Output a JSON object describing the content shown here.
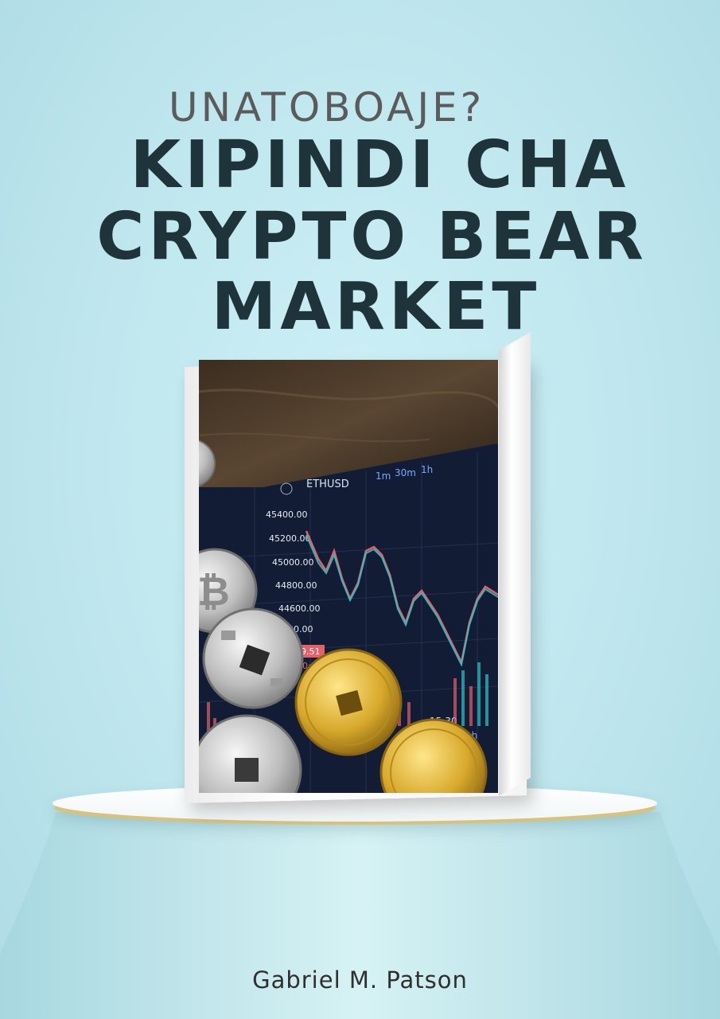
{
  "cover": {
    "subtitle": "UNATOBOAJE?",
    "title_lines": [
      "KIPINDI CHA",
      "CRYPTO BEAR",
      "MARKET"
    ],
    "author": "Gabriel M. Patson"
  },
  "book_image": {
    "ticker": "ETHUSD",
    "timeframes": [
      "1m",
      "30m",
      "1h"
    ],
    "price_levels": [
      "45400.00",
      "45200.00",
      "45000.00",
      "44800.00",
      "44600.00",
      "00.00"
    ],
    "time_label": "15:30",
    "time_frame_bottom": "1h",
    "price_tag": "9.51",
    "price_tag_2": "0:34"
  },
  "colors": {
    "background": "#bfe6ee",
    "title": "#1f333a",
    "subtitle": "#5b5b5b",
    "chart_bg": "#121d35",
    "candle_up": "#2fc3c6",
    "candle_down": "#e4606b"
  }
}
